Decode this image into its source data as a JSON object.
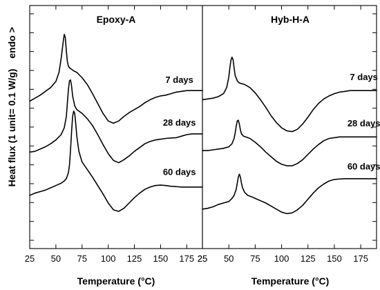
{
  "chart_data": {
    "type": "line",
    "ylabel": "Heat flux (1 unit= 0.1 W/g)",
    "y_annotation": "endo >",
    "xlim": [
      25,
      190
    ],
    "panels": [
      {
        "title": "Epoxy-A",
        "xlabel": "Temperature (°C)",
        "x_ticks": [
          "25",
          "50",
          "75",
          "100",
          "125",
          "150",
          "175",
          "25"
        ],
        "series": [
          {
            "name": "7 days",
            "x": [
              25,
              30,
              35,
              40,
              45,
              50,
              53,
              55,
              57,
              58,
              59,
              60,
              61,
              62,
              63,
              65,
              67,
              70,
              75,
              80,
              85,
              90,
              95,
              100,
              105,
              110,
              115,
              120,
              125,
              130,
              135,
              140,
              145,
              150,
              155,
              160,
              165,
              170,
              175,
              180,
              185,
              190
            ],
            "y": [
              -0.3,
              -0.1,
              0.1,
              0.35,
              0.6,
              1.0,
              1.6,
              2.5,
              3.6,
              4.1,
              3.9,
              3.0,
              2.3,
              2.0,
              1.9,
              1.8,
              1.7,
              1.6,
              1.25,
              0.8,
              0.2,
              -0.45,
              -1.1,
              -1.6,
              -1.75,
              -1.6,
              -1.3,
              -1.05,
              -0.85,
              -0.65,
              -0.4,
              -0.2,
              -0.05,
              0.05,
              0.1,
              0.2,
              0.3,
              0.35,
              0.4,
              0.4,
              0.4,
              0.4
            ]
          },
          {
            "name": "28 days",
            "x": [
              25,
              30,
              35,
              40,
              45,
              50,
              55,
              58,
              60,
              61,
              62,
              63,
              64,
              65,
              66,
              68,
              70,
              73,
              75,
              80,
              85,
              90,
              95,
              100,
              105,
              110,
              115,
              120,
              125,
              130,
              135,
              140,
              145,
              150,
              155,
              160,
              165,
              170,
              175,
              180,
              185,
              190
            ],
            "y": [
              -3.65,
              -3.6,
              -3.45,
              -3.3,
              -3.1,
              -2.85,
              -2.5,
              -2.05,
              -1.3,
              -0.4,
              0.5,
              1.05,
              1.1,
              0.7,
              0.05,
              -0.6,
              -0.85,
              -1.0,
              -1.1,
              -1.45,
              -1.9,
              -2.5,
              -3.15,
              -3.75,
              -4.2,
              -4.35,
              -4.15,
              -3.9,
              -3.6,
              -3.35,
              -3.1,
              -2.95,
              -2.85,
              -2.8,
              -2.75,
              -2.72,
              -2.7,
              -2.6,
              -2.5,
              -2.45,
              -2.45,
              -2.45
            ]
          },
          {
            "name": "60 days",
            "x": [
              25,
              30,
              35,
              40,
              45,
              50,
              55,
              58,
              60,
              62,
              63,
              64,
              65,
              66,
              67,
              68,
              69,
              70,
              72,
              75,
              80,
              85,
              90,
              95,
              100,
              105,
              110,
              115,
              120,
              125,
              130,
              135,
              140,
              145,
              150,
              155,
              160,
              165,
              170,
              175,
              180,
              185,
              190
            ],
            "y": [
              -6.5,
              -6.35,
              -6.25,
              -6.15,
              -6.0,
              -5.85,
              -5.7,
              -5.55,
              -5.4,
              -5.0,
              -4.5,
              -3.5,
              -2.3,
              -1.3,
              -0.95,
              -1.1,
              -1.8,
              -2.6,
              -3.6,
              -4.3,
              -4.8,
              -5.3,
              -5.85,
              -6.4,
              -7.0,
              -7.45,
              -7.55,
              -7.35,
              -7.0,
              -6.65,
              -6.35,
              -6.1,
              -5.95,
              -5.85,
              -5.82,
              -5.85,
              -5.9,
              -5.92,
              -5.95,
              -5.95,
              -5.95,
              -5.95,
              -5.95
            ]
          }
        ],
        "labels": [
          {
            "text": "7 days",
            "x": 168,
            "y": 0.9
          },
          {
            "text": "28 days",
            "x": 168,
            "y": -1.9
          },
          {
            "text": "60 days",
            "x": 168,
            "y": -5.15
          }
        ]
      },
      {
        "title": "Hyb-H-A",
        "xlabel": "Temperature (°C)",
        "x_ticks": [
          "25",
          "50",
          "75",
          "100",
          "125",
          "150",
          "175"
        ],
        "series": [
          {
            "name": "7 days",
            "x": [
              25,
              30,
              35,
              40,
              45,
              48,
              50,
              51,
              52,
              53,
              54,
              55,
              56,
              58,
              60,
              65,
              70,
              75,
              80,
              85,
              90,
              95,
              100,
              105,
              110,
              115,
              120,
              125,
              130,
              135,
              140,
              145,
              150,
              155,
              160,
              165,
              170,
              175,
              180,
              185,
              190
            ],
            "y": [
              -0.2,
              -0.15,
              -0.1,
              0.0,
              0.2,
              0.6,
              1.3,
              1.9,
              2.4,
              2.6,
              2.45,
              1.9,
              1.4,
              1.05,
              0.9,
              0.8,
              0.6,
              0.25,
              -0.2,
              -0.7,
              -1.25,
              -1.7,
              -2.05,
              -2.25,
              -2.3,
              -2.15,
              -1.8,
              -1.35,
              -0.85,
              -0.45,
              -0.15,
              0.05,
              0.2,
              0.3,
              0.35,
              0.4,
              0.4,
              0.4,
              0.4,
              0.4,
              0.4
            ]
          },
          {
            "name": "28 days",
            "x": [
              25,
              30,
              35,
              40,
              45,
              50,
              53,
              55,
              56,
              57,
              58,
              59,
              60,
              61,
              62,
              64,
              66,
              70,
              75,
              80,
              85,
              90,
              95,
              100,
              105,
              110,
              115,
              120,
              125,
              130,
              135,
              140,
              145,
              150,
              155,
              160,
              165,
              170,
              175,
              180,
              185,
              190
            ],
            "y": [
              -3.55,
              -3.55,
              -3.5,
              -3.45,
              -3.4,
              -3.3,
              -3.1,
              -2.75,
              -2.4,
              -1.95,
              -1.6,
              -1.55,
              -1.8,
              -2.2,
              -2.45,
              -2.6,
              -2.65,
              -2.75,
              -3.0,
              -3.3,
              -3.65,
              -3.95,
              -4.25,
              -4.45,
              -4.55,
              -4.55,
              -4.4,
              -4.15,
              -3.8,
              -3.45,
              -3.15,
              -2.9,
              -2.75,
              -2.7,
              -2.65,
              -2.65,
              -2.65,
              -2.65,
              -2.65,
              -2.65,
              -2.65,
              -2.65
            ]
          },
          {
            "name": "60 days",
            "x": [
              25,
              30,
              35,
              40,
              45,
              50,
              53,
              55,
              57,
              58,
              59,
              60,
              61,
              62,
              63,
              65,
              68,
              72,
              75,
              80,
              85,
              90,
              95,
              100,
              105,
              110,
              115,
              120,
              125,
              130,
              135,
              140,
              145,
              150,
              155,
              160,
              165,
              170,
              175,
              180,
              185,
              190
            ],
            "y": [
              -7.4,
              -7.35,
              -7.25,
              -7.1,
              -7.0,
              -6.9,
              -6.7,
              -6.5,
              -6.1,
              -5.7,
              -5.3,
              -5.1,
              -5.3,
              -5.7,
              -6.0,
              -6.3,
              -6.5,
              -6.6,
              -6.7,
              -6.85,
              -7.0,
              -7.2,
              -7.4,
              -7.6,
              -7.7,
              -7.65,
              -7.45,
              -7.15,
              -6.75,
              -6.35,
              -6.0,
              -5.75,
              -5.55,
              -5.45,
              -5.42,
              -5.4,
              -5.4,
              -5.4,
              -5.4,
              -5.4,
              -5.4,
              -5.4
            ]
          }
        ],
        "labels": [
          {
            "text": "7 days",
            "x": 178,
            "y": 1.1
          },
          {
            "text": "28 days",
            "x": 178,
            "y": -1.95
          },
          {
            "text": "60 days",
            "x": 178,
            "y": -4.8
          }
        ]
      }
    ],
    "ylim": [
      -10,
      6
    ],
    "y_ticks_count": 13,
    "line_color": "#000000",
    "grid": false,
    "legend": "none"
  }
}
